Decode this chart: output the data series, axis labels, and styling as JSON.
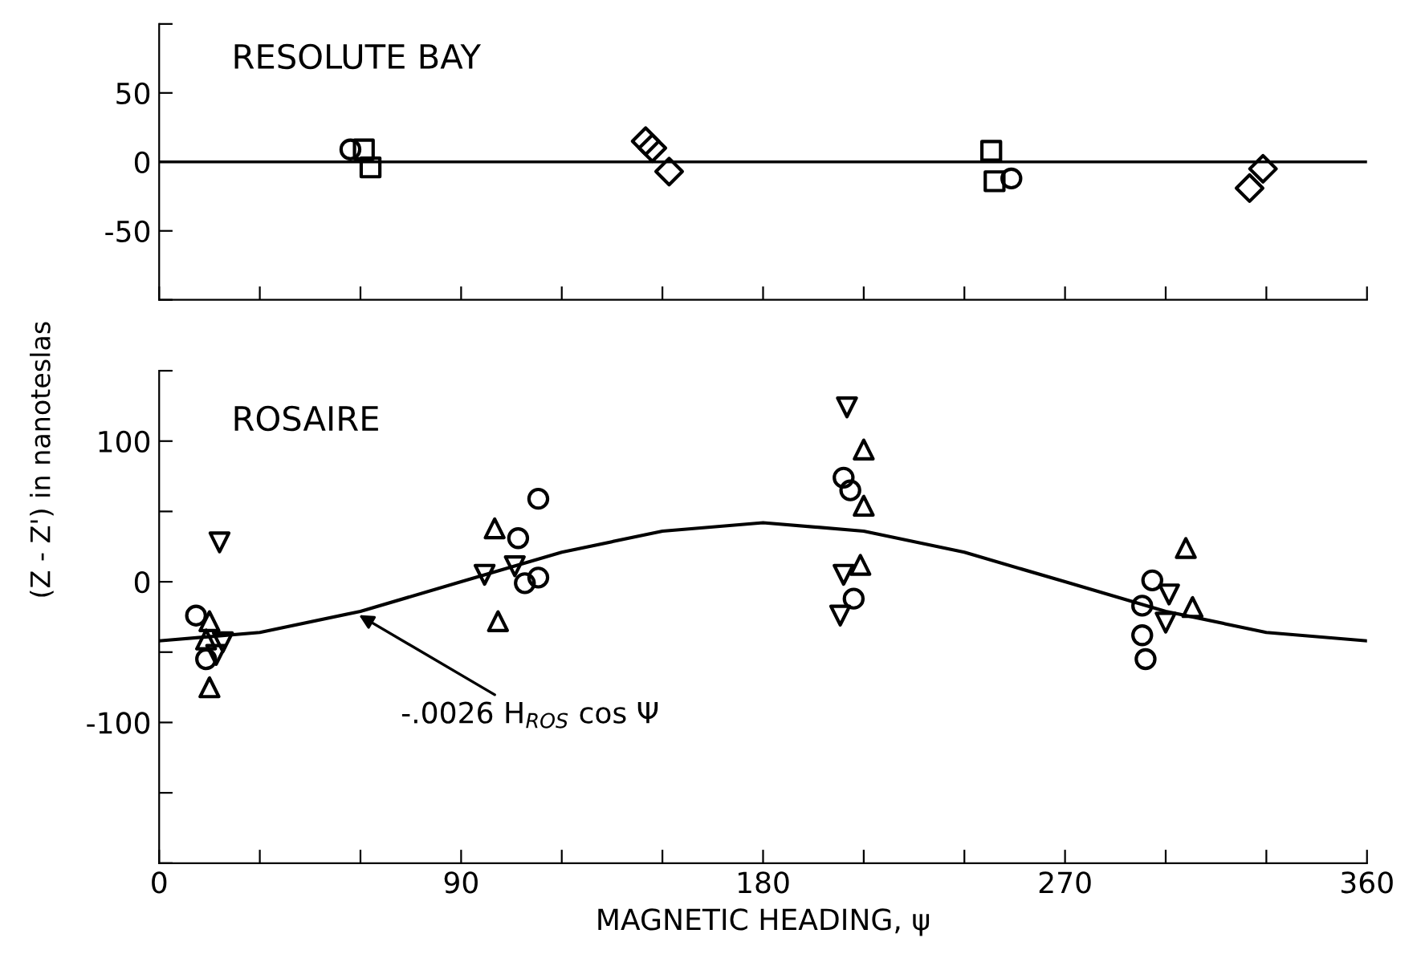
{
  "chart_data": [
    {
      "type": "scatter",
      "title": "RESOLUTE BAY",
      "xlim": [
        0,
        360
      ],
      "ylim": [
        -100,
        100
      ],
      "xticks": [
        {
          "value": 0,
          "label": null
        },
        {
          "value": 30,
          "label": null
        },
        {
          "value": 60,
          "label": null
        },
        {
          "value": 90,
          "label": null
        },
        {
          "value": 120,
          "label": null
        },
        {
          "value": 150,
          "label": null
        },
        {
          "value": 180,
          "label": null
        },
        {
          "value": 210,
          "label": null
        },
        {
          "value": 240,
          "label": null
        },
        {
          "value": 270,
          "label": null
        },
        {
          "value": 300,
          "label": null
        },
        {
          "value": 330,
          "label": null
        },
        {
          "value": 360,
          "label": null
        }
      ],
      "yticks": [
        {
          "value": -100,
          "label": null
        },
        {
          "value": -50,
          "label": "-50"
        },
        0,
        50,
        {
          "value": 100,
          "label": null
        }
      ],
      "tick_labels": "y",
      "grid": false,
      "legend": false,
      "ref_lines": [
        {
          "axis": "y",
          "value": 0,
          "color": "#000000",
          "line_style": "solid"
        }
      ],
      "series": [
        {
          "marker": "circle",
          "color": "#000000",
          "x": [
            57,
            254
          ],
          "values": [
            9,
            -12
          ]
        },
        {
          "marker": "square",
          "color": "#000000",
          "x": [
            61,
            63,
            248,
            249
          ],
          "values": [
            9,
            -4,
            8,
            -14
          ]
        },
        {
          "marker": "diamond",
          "color": "#000000",
          "x": [
            145,
            147,
            152,
            329,
            325
          ],
          "values": [
            15,
            10,
            -7,
            -5,
            -19
          ]
        }
      ]
    },
    {
      "type": "scatter",
      "title": "ROSAIRE",
      "xlabel": "MAGNETIC HEADING, ψ",
      "ylabel": "(Z - Z') in nanoteslas",
      "xlim": [
        0,
        360
      ],
      "ylim": [
        -200,
        150
      ],
      "xticks": [
        0,
        {
          "value": 30,
          "label": null
        },
        {
          "value": 60,
          "label": null
        },
        90,
        {
          "value": 120,
          "label": null
        },
        {
          "value": 150,
          "label": null
        },
        180,
        {
          "value": 210,
          "label": null
        },
        {
          "value": 240,
          "label": null
        },
        270,
        {
          "value": 300,
          "label": null
        },
        {
          "value": 330,
          "label": null
        },
        360
      ],
      "yticks": [
        {
          "value": -200,
          "label": null
        },
        {
          "value": -150,
          "label": null
        },
        {
          "value": -100,
          "label": "-100"
        },
        {
          "value": -50,
          "label": null
        },
        0,
        {
          "value": 50,
          "label": null
        },
        100,
        {
          "value": 150,
          "label": null
        }
      ],
      "grid": false,
      "legend": false,
      "annotations": [
        {
          "text": "-.0026 H$_{ROS}$ cos Ψ",
          "x": 58.4,
          "y": -22
        }
      ],
      "series": [
        {
          "type": "line",
          "marker": "none",
          "line_style": "solid",
          "color": "#000000",
          "x": [
            0,
            30,
            60,
            90,
            120,
            150,
            180,
            210,
            240,
            270,
            300,
            330,
            360
          ],
          "values": [
            -42,
            -36,
            -21,
            0,
            21,
            36,
            42,
            36,
            21,
            0,
            -21,
            -36,
            -42
          ]
        },
        {
          "marker": "circle",
          "color": "#000000",
          "x": [
            11,
            14,
            107,
            109,
            113,
            113,
            204,
            206,
            207,
            296,
            293,
            293,
            294
          ],
          "values": [
            -24,
            -55,
            31,
            -1,
            3,
            59,
            74,
            65,
            -12,
            1,
            -17,
            -38,
            -55
          ]
        },
        {
          "marker": "triangle",
          "color": "#000000",
          "x": [
            15,
            14,
            15,
            100,
            101,
            210,
            210,
            209,
            306,
            308
          ],
          "values": [
            -28,
            -41,
            -75,
            38,
            -28,
            94,
            54,
            12,
            24,
            -18
          ]
        },
        {
          "marker": "triangle_down",
          "color": "#000000",
          "x": [
            19,
            17,
            18,
            97,
            106,
            205,
            204,
            203,
            301,
            300
          ],
          "values": [
            -43,
            -52,
            28,
            5,
            11,
            124,
            5,
            -24,
            -9,
            -29
          ]
        }
      ]
    }
  ]
}
